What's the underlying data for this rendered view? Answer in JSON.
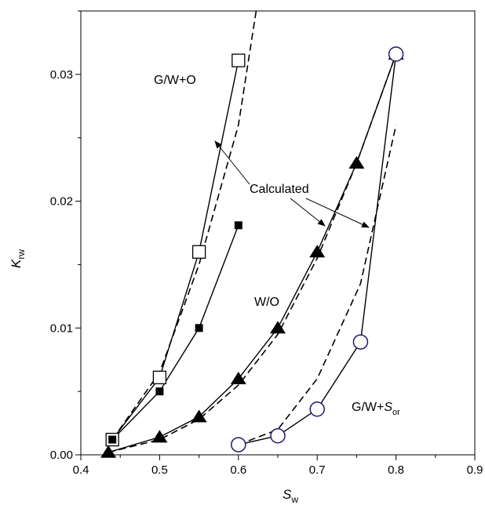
{
  "chart_data": {
    "type": "scatter",
    "title": "",
    "xlabel": {
      "main": "S",
      "sub": "w"
    },
    "ylabel": {
      "main": "K",
      "sub": "rw"
    },
    "xlim": [
      0.4,
      0.9
    ],
    "ylim": [
      0.0,
      0.035
    ],
    "x_ticks": [
      0.4,
      0.5,
      0.6,
      0.7,
      0.8,
      0.9
    ],
    "x_tick_labels": [
      "0.4",
      "0.5",
      "0.6",
      "0.7",
      "0.8",
      "0.9"
    ],
    "y_ticks": [
      0.0,
      0.01,
      0.02,
      0.03
    ],
    "y_tick_labels": [
      "0.00",
      "0.01",
      "0.02",
      "0.03"
    ],
    "grid": false,
    "series": [
      {
        "key": "gwo_measured",
        "marker": "open-square",
        "style": "solid",
        "x": [
          0.44,
          0.5,
          0.55,
          0.6
        ],
        "y": [
          0.0012,
          0.0061,
          0.016,
          0.0311
        ]
      },
      {
        "key": "gwo_calculated",
        "style": "dashed",
        "x": [
          0.44,
          0.5,
          0.55,
          0.6,
          0.625
        ],
        "y": [
          0.0012,
          0.0065,
          0.015,
          0.026,
          0.036
        ]
      },
      {
        "key": "filled_square",
        "marker": "filled-square",
        "style": "solid",
        "x": [
          0.44,
          0.5,
          0.55,
          0.6
        ],
        "y": [
          0.0012,
          0.005,
          0.01,
          0.0181
        ]
      },
      {
        "key": "wo_measured",
        "marker": "filled-triangle",
        "style": "solid",
        "x": [
          0.435,
          0.5,
          0.55,
          0.6,
          0.65,
          0.7,
          0.75,
          0.8
        ],
        "y": [
          0.0002,
          0.0014,
          0.003,
          0.006,
          0.01,
          0.016,
          0.023,
          0.0316
        ]
      },
      {
        "key": "wo_calculated",
        "style": "dashed",
        "x": [
          0.435,
          0.5,
          0.55,
          0.6,
          0.65,
          0.7,
          0.75,
          0.8
        ],
        "y": [
          0.0002,
          0.0012,
          0.0028,
          0.0055,
          0.0095,
          0.0155,
          0.023,
          0.0316
        ]
      },
      {
        "key": "gw_sor_measured",
        "marker": "open-circle",
        "style": "solid",
        "x": [
          0.6,
          0.65,
          0.7,
          0.755,
          0.8
        ],
        "y": [
          0.0008,
          0.0015,
          0.0036,
          0.0089,
          0.0316
        ]
      },
      {
        "key": "gw_sor_calculated",
        "style": "dashed",
        "x": [
          0.6,
          0.65,
          0.7,
          0.755,
          0.8
        ],
        "y": [
          0.0008,
          0.002,
          0.006,
          0.0135,
          0.026
        ]
      }
    ],
    "annotations": {
      "gwo": "G/W+O",
      "calculated": "Calculated",
      "wo": "W/O",
      "gw_sor_prefix": "G/W+",
      "gw_sor_italic": "S",
      "gw_sor_sub": "or"
    },
    "colors": {
      "axis": "#000000",
      "line": "#000000",
      "circle_marker": "#1f1a6e"
    }
  }
}
